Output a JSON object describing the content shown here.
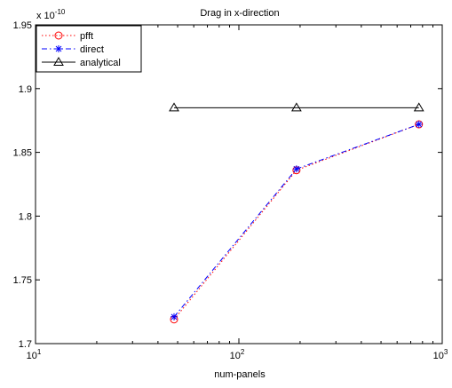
{
  "chart_data": {
    "type": "line",
    "title": "Drag in x-direction",
    "xlabel": "num-panels",
    "ylabel": "",
    "x_scale": "log",
    "xlim": [
      10,
      1000
    ],
    "ylim": [
      1.7,
      1.95
    ],
    "y_multiplier": "x 10",
    "y_multiplier_exponent": "-10",
    "x_ticks": [
      {
        "value": 10,
        "base": "10",
        "exp": "1"
      },
      {
        "value": 100,
        "base": "10",
        "exp": "2"
      },
      {
        "value": 1000,
        "base": "10",
        "exp": "3"
      }
    ],
    "y_ticks": [
      "1.7",
      "1.75",
      "1.8",
      "1.85",
      "1.9",
      "1.95"
    ],
    "grid": false,
    "legend_position": "top-left",
    "series": [
      {
        "name": "pfft",
        "color": "#ff0000",
        "linestyle": "dotted",
        "marker": "circle",
        "x": [
          48,
          192,
          768
        ],
        "y": [
          1.719,
          1.836,
          1.872
        ]
      },
      {
        "name": "direct",
        "color": "#0000ff",
        "linestyle": "dash-dot",
        "marker": "asterisk",
        "x": [
          48,
          192,
          768
        ],
        "y": [
          1.721,
          1.837,
          1.872
        ]
      },
      {
        "name": "analytical",
        "color": "#000000",
        "linestyle": "solid",
        "marker": "triangle",
        "x": [
          48,
          192,
          768
        ],
        "y": [
          1.885,
          1.885,
          1.885
        ]
      }
    ]
  }
}
